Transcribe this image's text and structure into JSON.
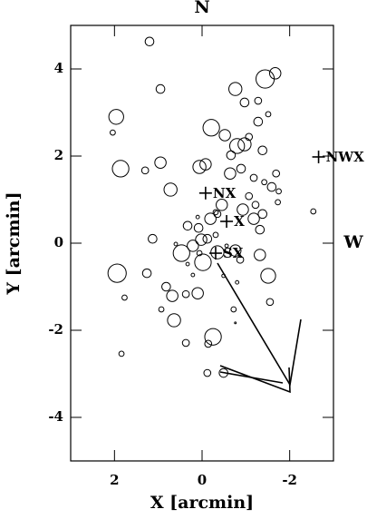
{
  "chart_data": {
    "type": "scatter",
    "top_label": "N",
    "right_label": "W",
    "x_label": "X [arcmin]",
    "y_label": "Y [arcmin]",
    "xlim": [
      3,
      -3
    ],
    "ylim": [
      -5,
      5
    ],
    "xticks": [
      2,
      0,
      -2
    ],
    "yticks": [
      -4,
      -2,
      0,
      2,
      4
    ],
    "x": [
      1.2,
      1.96,
      2.04,
      0.95,
      1.86,
      1.3,
      0.95,
      0.72,
      -0.21,
      0.06,
      -0.08,
      -0.52,
      -0.76,
      -0.97,
      -1.44,
      -1.67,
      -1.28,
      -1.28,
      -1.51,
      -0.8,
      -0.66,
      -0.97,
      -1.07,
      -0.64,
      -1.38,
      -0.89,
      -1.18,
      -1.69,
      -1.59,
      -1.75,
      -1.42,
      -1.73,
      -1.07,
      -1.22,
      -1.38,
      -1.18,
      -0.93,
      -0.45,
      -0.35,
      -0.19,
      0.08,
      0.33,
      0.02,
      -0.12,
      0.21,
      0.47,
      0.06,
      -0.31,
      -0.02,
      -0.35,
      -0.76,
      -0.87,
      -1.32,
      -1.32,
      -1.51,
      -1.55,
      1.13,
      1.26,
      1.94,
      1.77,
      0.82,
      0.68,
      0.93,
      0.64,
      0.37,
      0.1,
      -0.72,
      -0.25,
      -0.14,
      0.37,
      1.84,
      -0.12,
      -0.49,
      -0.31,
      0.1,
      -0.56,
      0.33,
      0.6,
      -2.54,
      -0.8,
      -0.76,
      0.21,
      -0.49
    ],
    "values": [
      4.63,
      2.9,
      2.54,
      3.54,
      1.71,
      1.67,
      1.85,
      1.23,
      2.65,
      1.75,
      1.81,
      2.48,
      3.54,
      3.23,
      3.77,
      3.9,
      3.27,
      2.79,
      2.96,
      2.23,
      2.02,
      2.27,
      2.44,
      1.6,
      2.13,
      1.71,
      1.5,
      1.6,
      1.29,
      1.19,
      1.4,
      0.94,
      1.08,
      0.88,
      0.67,
      0.56,
      0.77,
      0.88,
      0.67,
      0.56,
      0.35,
      0.4,
      0.08,
      0.1,
      -0.06,
      -0.23,
      -0.23,
      0.19,
      -0.44,
      -0.21,
      -0.17,
      -0.38,
      0.31,
      -0.27,
      -0.75,
      -1.35,
      0.1,
      -0.69,
      -0.69,
      -1.25,
      -1.0,
      -1.21,
      -1.52,
      -1.77,
      -1.17,
      -1.15,
      -1.52,
      -2.15,
      -2.31,
      -2.29,
      -2.54,
      -2.98,
      -2.98,
      0.71,
      0.6,
      -0.06,
      -0.48,
      -0.02,
      0.73,
      -0.9,
      -1.83,
      -0.73,
      -0.75
    ],
    "sizes": [
      0.1,
      0.17,
      0.06,
      0.1,
      0.19,
      0.08,
      0.13,
      0.15,
      0.19,
      0.15,
      0.13,
      0.13,
      0.15,
      0.1,
      0.21,
      0.13,
      0.08,
      0.1,
      0.06,
      0.17,
      0.1,
      0.15,
      0.08,
      0.13,
      0.1,
      0.1,
      0.08,
      0.08,
      0.1,
      0.06,
      0.06,
      0.06,
      0.08,
      0.08,
      0.1,
      0.13,
      0.13,
      0.13,
      0.08,
      0.13,
      0.1,
      0.1,
      0.13,
      0.1,
      0.13,
      0.19,
      0.06,
      0.06,
      0.19,
      0.15,
      0.13,
      0.08,
      0.1,
      0.13,
      0.17,
      0.08,
      0.1,
      0.1,
      0.21,
      0.06,
      0.1,
      0.13,
      0.06,
      0.15,
      0.08,
      0.13,
      0.06,
      0.19,
      0.08,
      0.08,
      0.06,
      0.08,
      0.1,
      0.06,
      0.04,
      0.04,
      0.04,
      0.04,
      0.06,
      0.04,
      0.02,
      0.04,
      0.04
    ],
    "annotations": [
      {
        "label": "NX",
        "x": -0.08,
        "y": 1.15
      },
      {
        "label": "X",
        "x": -0.56,
        "y": 0.5
      },
      {
        "label": "SX",
        "x": -0.31,
        "y": -0.23
      },
      {
        "label": "NWX",
        "x": -2.66,
        "y": 1.98
      }
    ]
  }
}
